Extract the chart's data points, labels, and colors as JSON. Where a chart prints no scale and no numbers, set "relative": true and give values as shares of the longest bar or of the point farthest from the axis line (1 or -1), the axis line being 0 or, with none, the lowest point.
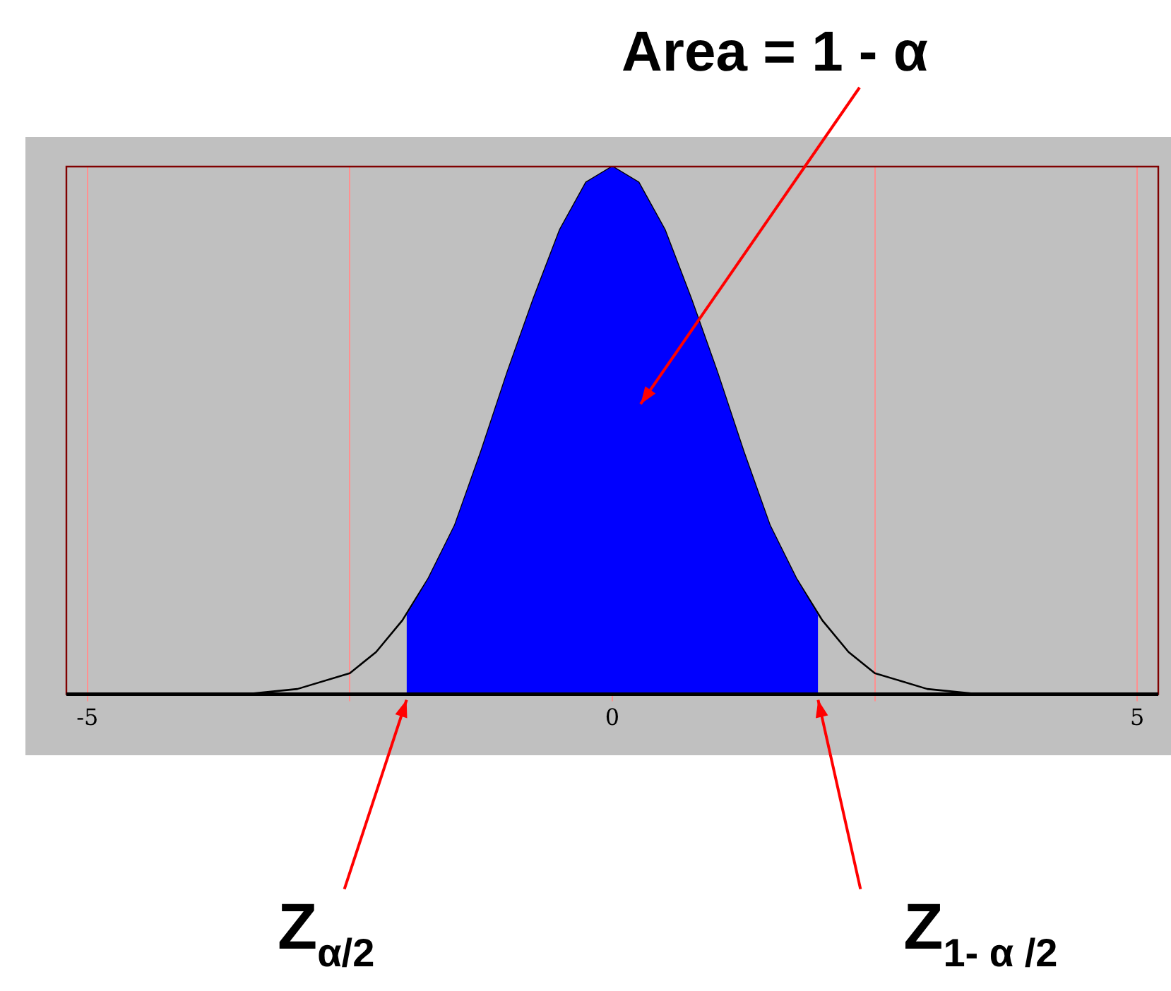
{
  "chart_data": {
    "type": "area",
    "relative": true,
    "xlim": [
      -5.2,
      5.2
    ],
    "xticks": [
      -5,
      {
        "value": -2.5,
        "label": null
      },
      0,
      {
        "value": 2.5,
        "label": null
      },
      5
    ],
    "grid": "x",
    "legend": false,
    "marker": "none",
    "line_style": "solid",
    "tick_labels": "x",
    "series": [
      {
        "type": "area",
        "color": "#0000ff",
        "x": [
          -1.96,
          -1.75,
          -1.5,
          -1.25,
          -1,
          -0.75,
          -0.5,
          -0.25,
          0,
          0.25,
          0.5,
          0.75,
          1,
          1.25,
          1.5,
          1.75,
          1.96
        ],
        "values": [
          0.15,
          0.22,
          0.32,
          0.46,
          0.61,
          0.75,
          0.88,
          0.97,
          1,
          0.97,
          0.88,
          0.75,
          0.61,
          0.46,
          0.32,
          0.22,
          0.15
        ]
      },
      {
        "type": "line",
        "color": "#000000",
        "x": [
          -5.2,
          -4.5,
          -4,
          -3.5,
          -3,
          -2.5,
          -2.25,
          -2,
          -1.75,
          -1.5,
          -1.25,
          -1,
          -0.75,
          -0.5,
          -0.25,
          0,
          0.25,
          0.5,
          0.75,
          1,
          1.25,
          1.5,
          1.75,
          2,
          2.25,
          2.5,
          3,
          3.5,
          4,
          4.5,
          5.2
        ],
        "values": [
          0,
          0,
          0,
          0,
          0.01,
          0.04,
          0.08,
          0.14,
          0.22,
          0.32,
          0.46,
          0.61,
          0.75,
          0.88,
          0.97,
          1,
          0.97,
          0.88,
          0.75,
          0.61,
          0.46,
          0.32,
          0.22,
          0.14,
          0.08,
          0.04,
          0.01,
          0,
          0,
          0,
          0
        ]
      }
    ],
    "annotations": [
      "Area = 1 - α",
      {
        "text": "Z$_{α/2}$",
        "x": -1.96,
        "y": 0
      },
      {
        "text": "Z$_{1- α /2}$",
        "x": 1.96,
        "y": 0
      }
    ]
  }
}
